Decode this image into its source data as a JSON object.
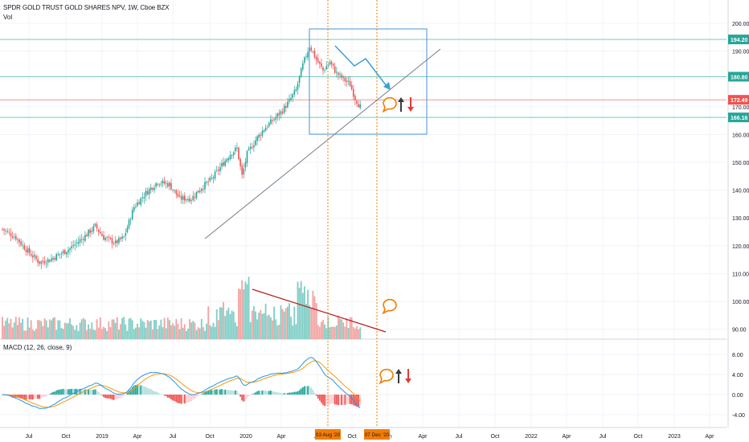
{
  "header": {
    "title": "SPDR GOLD TRUST GOLD SHARES NPV, 1W, Cboe BZX",
    "volume_label": "Vol",
    "macd_label": "MACD (12, 26, close, 9)"
  },
  "chart_data": [
    {
      "type": "candlestick",
      "ylim": [
        86,
        206
      ],
      "y_ticks": [
        90,
        100,
        110,
        120,
        130,
        140,
        150,
        160,
        170,
        180,
        190,
        200
      ],
      "y_tick_labels": [
        "90.00",
        "100.00",
        "110.00",
        "120.00",
        "130.00",
        "140.00",
        "150.00",
        "160.00",
        "170.00",
        "180.00",
        "190.00",
        "200.00"
      ],
      "x_ticks": [
        "Jul",
        "Oct",
        "2019",
        "Apr",
        "Jul",
        "Oct",
        "2020",
        "Apr",
        "Jul",
        "Oct",
        "Jan",
        "Apr",
        "Jul",
        "Oct",
        "2022",
        "Apr",
        "Jul",
        "Oct",
        "2023",
        "Apr"
      ],
      "horizontal_levels": [
        {
          "value": 194.2,
          "label": "194.20",
          "color": "#26a69a"
        },
        {
          "value": 180.8,
          "label": "180.80",
          "color": "#26a69a"
        },
        {
          "value": 172.49,
          "label": "172.49",
          "color": "#ef5350"
        },
        {
          "value": 166.16,
          "label": "166.16",
          "color": "#26a69a"
        }
      ],
      "vertical_markers": [
        {
          "label": "03 Aug '20",
          "color": "#f57c00"
        },
        {
          "label": "07 Dec '20",
          "color": "#f57c00"
        }
      ],
      "up_color": "#26a69a",
      "down_color": "#ef5350"
    },
    {
      "type": "bar",
      "name": "Vol",
      "up_color": "#7ecdc5",
      "down_color": "#f3a2a0"
    },
    {
      "type": "macd",
      "ylim": [
        -5.2,
        9.2
      ],
      "y_ticks": [
        8,
        4,
        0,
        -4
      ],
      "y_tick_labels": [
        "8.00",
        "4.00",
        "0.00",
        "-4.00"
      ],
      "macd_color": "#2196f3",
      "signal_color": "#ff9800"
    }
  ],
  "annotations": {
    "accent": "#f57c00",
    "box_color": "#4a90d9",
    "arrow_up_color": "#3a3a3a",
    "arrow_down_color": "#e53935"
  }
}
